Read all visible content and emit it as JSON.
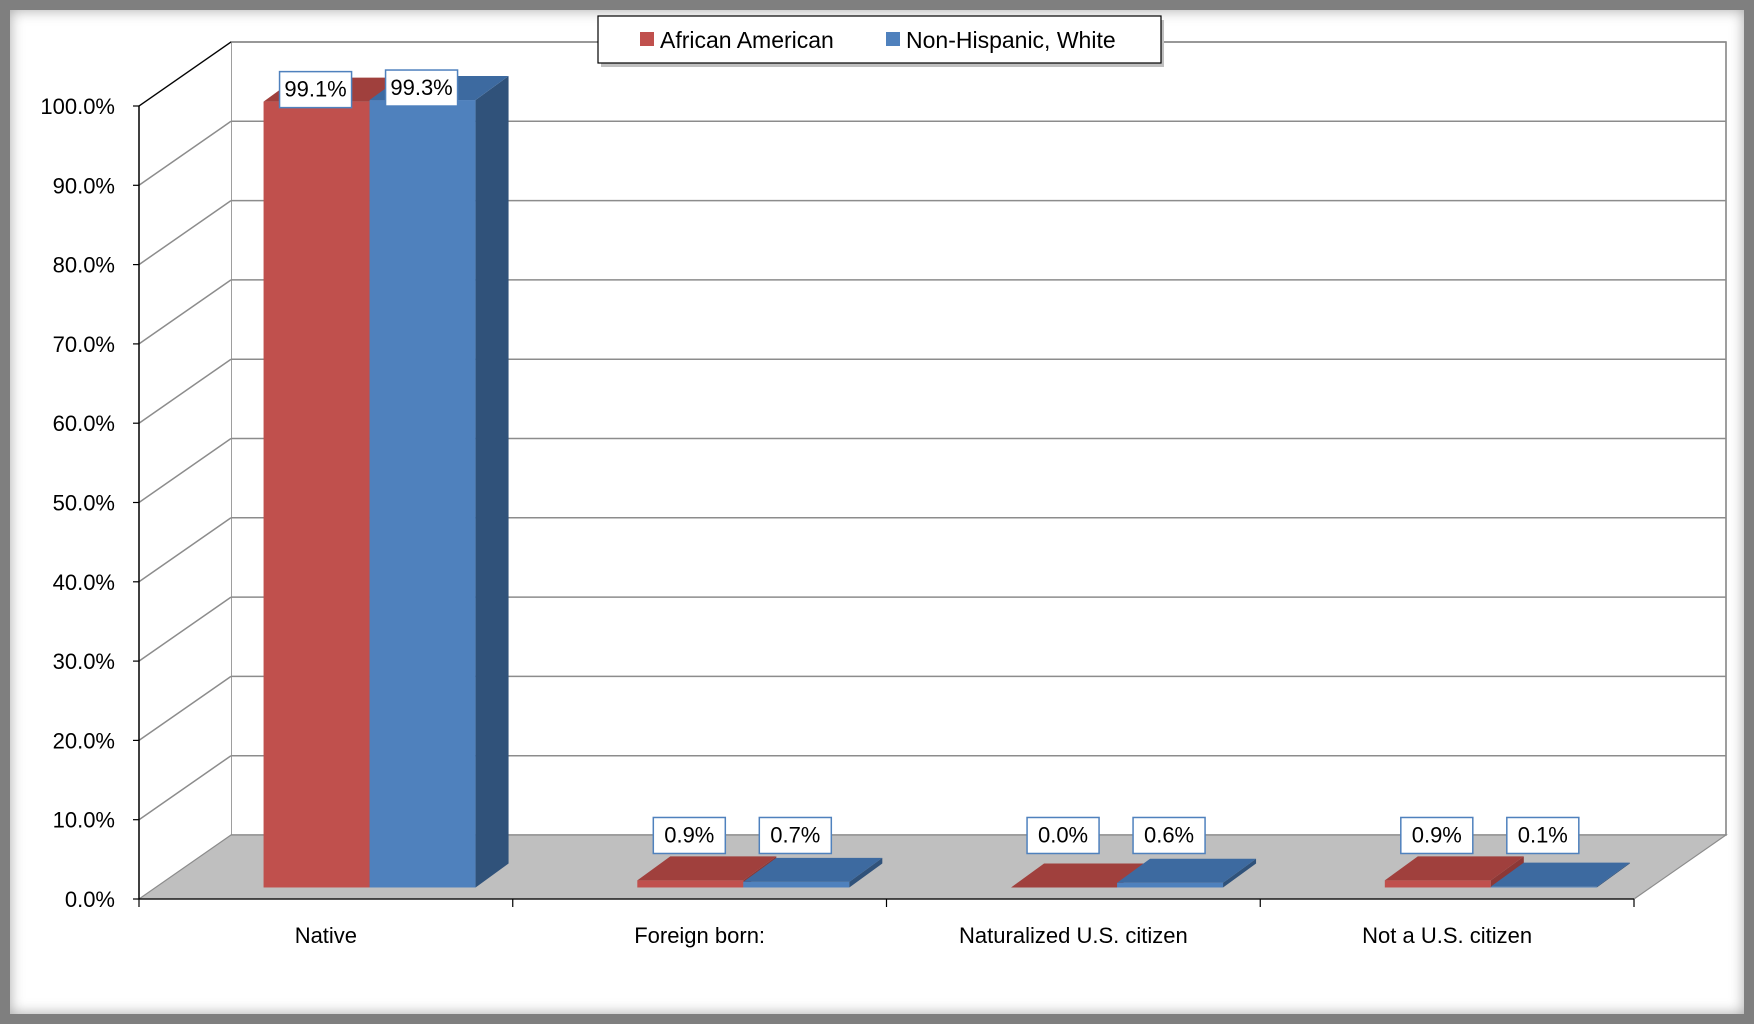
{
  "chart_data": {
    "type": "bar",
    "style": "3d-clustered",
    "categories": [
      "Native",
      "Foreign born:",
      "Naturalized U.S. citizen",
      "Not a U.S. citizen"
    ],
    "series": [
      {
        "name": "African American",
        "values": [
          99.1,
          0.9,
          0.0,
          0.9
        ],
        "labels": [
          "99.1%",
          "0.9%",
          "0.0%",
          "0.9%"
        ],
        "color": "#c0504d",
        "side_color": "#8c3836",
        "top_color": "#a0403d"
      },
      {
        "name": "Non-Hispanic, White",
        "values": [
          99.3,
          0.7,
          0.6,
          0.1
        ],
        "labels": [
          "99.3%",
          "0.7%",
          "0.6%",
          "0.1%"
        ],
        "color": "#4f81bd",
        "side_color": "#30527a",
        "top_color": "#3d6aa0"
      }
    ],
    "ylim": [
      0,
      100
    ],
    "yticks": [
      0,
      10,
      20,
      30,
      40,
      50,
      60,
      70,
      80,
      90,
      100
    ],
    "ytick_labels": [
      "0.0%",
      "10.0%",
      "20.0%",
      "30.0%",
      "40.0%",
      "50.0%",
      "60.0%",
      "70.0%",
      "80.0%",
      "90.0%",
      "100.0%"
    ],
    "grid": true,
    "legend_position": "top-center",
    "floor_color": "#bfbfbf",
    "grid_color": "#8c8c8c"
  }
}
